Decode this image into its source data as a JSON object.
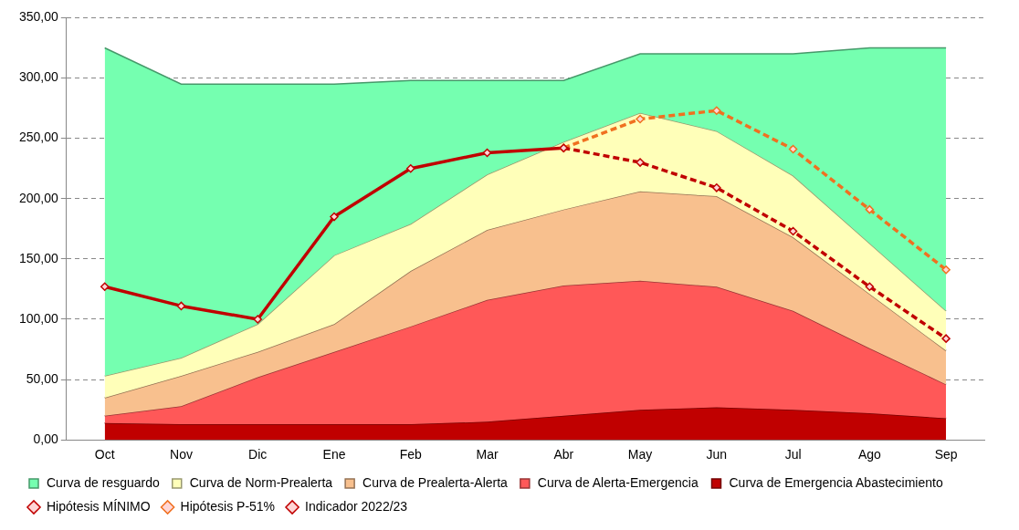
{
  "chart_data": {
    "type": "area",
    "categories": [
      "Oct",
      "Nov",
      "Dic",
      "Ene",
      "Feb",
      "Mar",
      "Abr",
      "May",
      "Jun",
      "Jul",
      "Ago",
      "Sep"
    ],
    "series": [
      {
        "name": "Curva de resguardo",
        "type": "area",
        "color": "#75ffb0",
        "values": [
          325,
          295,
          295,
          295,
          298,
          298,
          298,
          320,
          320,
          320,
          325,
          325
        ]
      },
      {
        "name": "Curva de Norm-Prealerta",
        "type": "area",
        "color": "#ffffb9",
        "values": [
          53,
          68,
          96,
          153,
          179,
          220,
          247,
          271,
          256,
          219,
          163,
          107
        ]
      },
      {
        "name": "Curva de Prealerta-Alerta",
        "type": "area",
        "color": "#f8c08e",
        "values": [
          35,
          53,
          73,
          96,
          140,
          174,
          191,
          206,
          202,
          168,
          121,
          74
        ]
      },
      {
        "name": "Curva de Alerta-Emergencia",
        "type": "area",
        "color": "#ff5858",
        "values": [
          20,
          28,
          52,
          73,
          94,
          116,
          128,
          132,
          127,
          107,
          76,
          46
        ]
      },
      {
        "name": "Curva de Emergencia Abastecimiento",
        "type": "area",
        "color": "#c00000",
        "values": [
          14,
          13,
          13,
          13,
          13,
          15,
          20,
          25,
          27,
          25,
          22,
          18
        ]
      },
      {
        "name": "Hipótesis MÍNIMO",
        "type": "line",
        "color": "#c00000",
        "line_style": "dashed",
        "marker": "diamond",
        "values": [
          null,
          null,
          null,
          null,
          null,
          null,
          242,
          230,
          209,
          173,
          127,
          84
        ]
      },
      {
        "name": "Hipótesis P-51%",
        "type": "line",
        "color": "#f07020",
        "line_style": "dashed",
        "marker": "diamond",
        "values": [
          null,
          null,
          null,
          null,
          null,
          null,
          242,
          266,
          273,
          241,
          191,
          141
        ]
      },
      {
        "name": "Indicador 2022/23",
        "type": "line",
        "color": "#c00000",
        "line_style": "solid",
        "marker": "diamond",
        "values": [
          127,
          111,
          100,
          185,
          225,
          238,
          242,
          null,
          null,
          null,
          null,
          null
        ]
      }
    ],
    "ylim": [
      0,
      350
    ],
    "yticks": [
      {
        "value": 0,
        "label": "0,00"
      },
      {
        "value": 50,
        "label": "50,00"
      },
      {
        "value": 100,
        "label": "100,00"
      },
      {
        "value": 150,
        "label": "150,00"
      },
      {
        "value": 200,
        "label": "200,00"
      },
      {
        "value": 250,
        "label": "250,00"
      },
      {
        "value": 300,
        "label": "300,00"
      },
      {
        "value": 350,
        "label": "350,00"
      }
    ],
    "grid": "y",
    "legend": "bottom"
  }
}
